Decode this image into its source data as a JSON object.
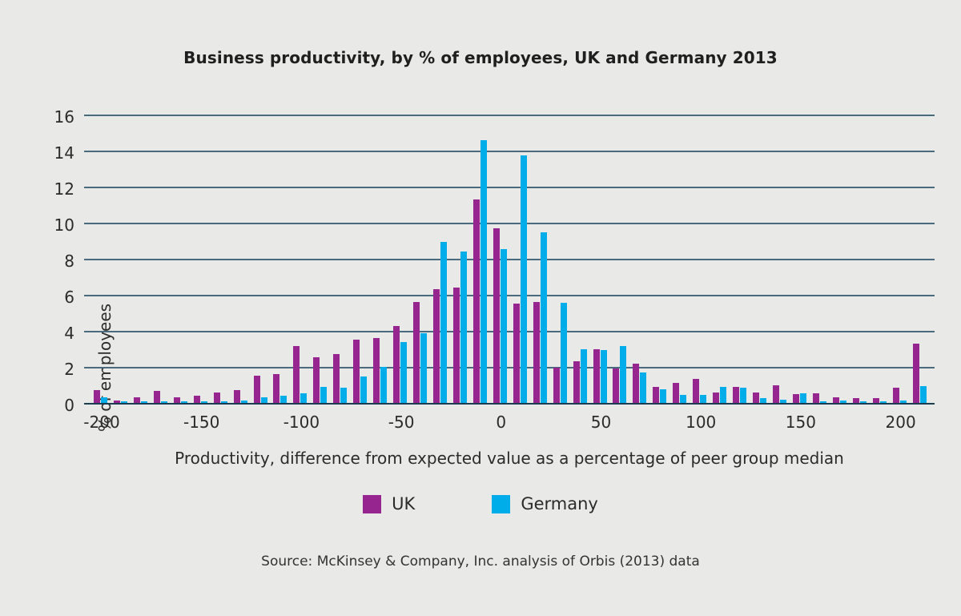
{
  "title": "Business productivity, by % of employees, UK and Germany 2013",
  "source_note": "Source: McKinsey & Company, Inc. analysis of Orbis (2013) data",
  "colors": {
    "uk": "#97258F",
    "germany": "#00ADE8",
    "background": "#E9E9E7",
    "gridline": "#4A6B7E",
    "baseline": "#1B3D52"
  },
  "legend": [
    {
      "label": "UK",
      "color": "#97258F"
    },
    {
      "label": "Germany",
      "color": "#00ADE8"
    }
  ],
  "chart_data": {
    "type": "bar",
    "title": "Business productivity, by % of employees, UK and Germany 2013",
    "xlabel": "Productivity, difference from expected value as a percentage of peer group median",
    "ylabel": "% of employees",
    "ylim": [
      0,
      16
    ],
    "ytick_step": 2,
    "grid": true,
    "legend_position": "bottom",
    "xticks": [
      -200,
      -150,
      -100,
      -50,
      0,
      50,
      100,
      150,
      200
    ],
    "bin_width": 10,
    "categories": [
      -200,
      -190,
      -180,
      -170,
      -160,
      -150,
      -140,
      -130,
      -120,
      -110,
      -100,
      -90,
      -80,
      -70,
      -60,
      -50,
      -40,
      -30,
      -20,
      -10,
      0,
      10,
      20,
      30,
      40,
      50,
      60,
      70,
      80,
      90,
      100,
      110,
      120,
      130,
      140,
      150,
      160,
      170,
      180,
      190,
      200,
      210
    ],
    "series": [
      {
        "name": "UK",
        "color": "#97258F",
        "values": [
          0.7,
          0.12,
          0.3,
          0.65,
          0.33,
          0.4,
          0.6,
          0.7,
          1.5,
          1.6,
          3.15,
          2.55,
          2.7,
          3.5,
          3.6,
          4.25,
          5.6,
          6.3,
          6.4,
          11.3,
          9.7,
          5.5,
          5.6,
          1.95,
          2.3,
          3.0,
          1.9,
          2.2,
          0.9,
          1.1,
          1.35,
          0.6,
          0.9,
          0.6,
          1.0,
          0.5,
          0.55,
          0.3,
          0.25,
          0.25,
          0.85,
          3.3
        ]
      },
      {
        "name": "Germany",
        "color": "#00ADE8",
        "values": [
          0.3,
          0.07,
          0.08,
          0.08,
          0.08,
          0.1,
          0.1,
          0.15,
          0.3,
          0.4,
          0.55,
          0.9,
          0.85,
          1.45,
          2.0,
          3.4,
          3.85,
          8.95,
          8.4,
          14.6,
          8.55,
          13.75,
          9.45,
          5.55,
          3.0,
          2.95,
          3.15,
          1.7,
          0.75,
          0.45,
          0.45,
          0.9,
          0.85,
          0.25,
          0.2,
          0.55,
          0.1,
          0.15,
          0.1,
          0.1,
          0.15,
          0.95
        ]
      }
    ]
  }
}
